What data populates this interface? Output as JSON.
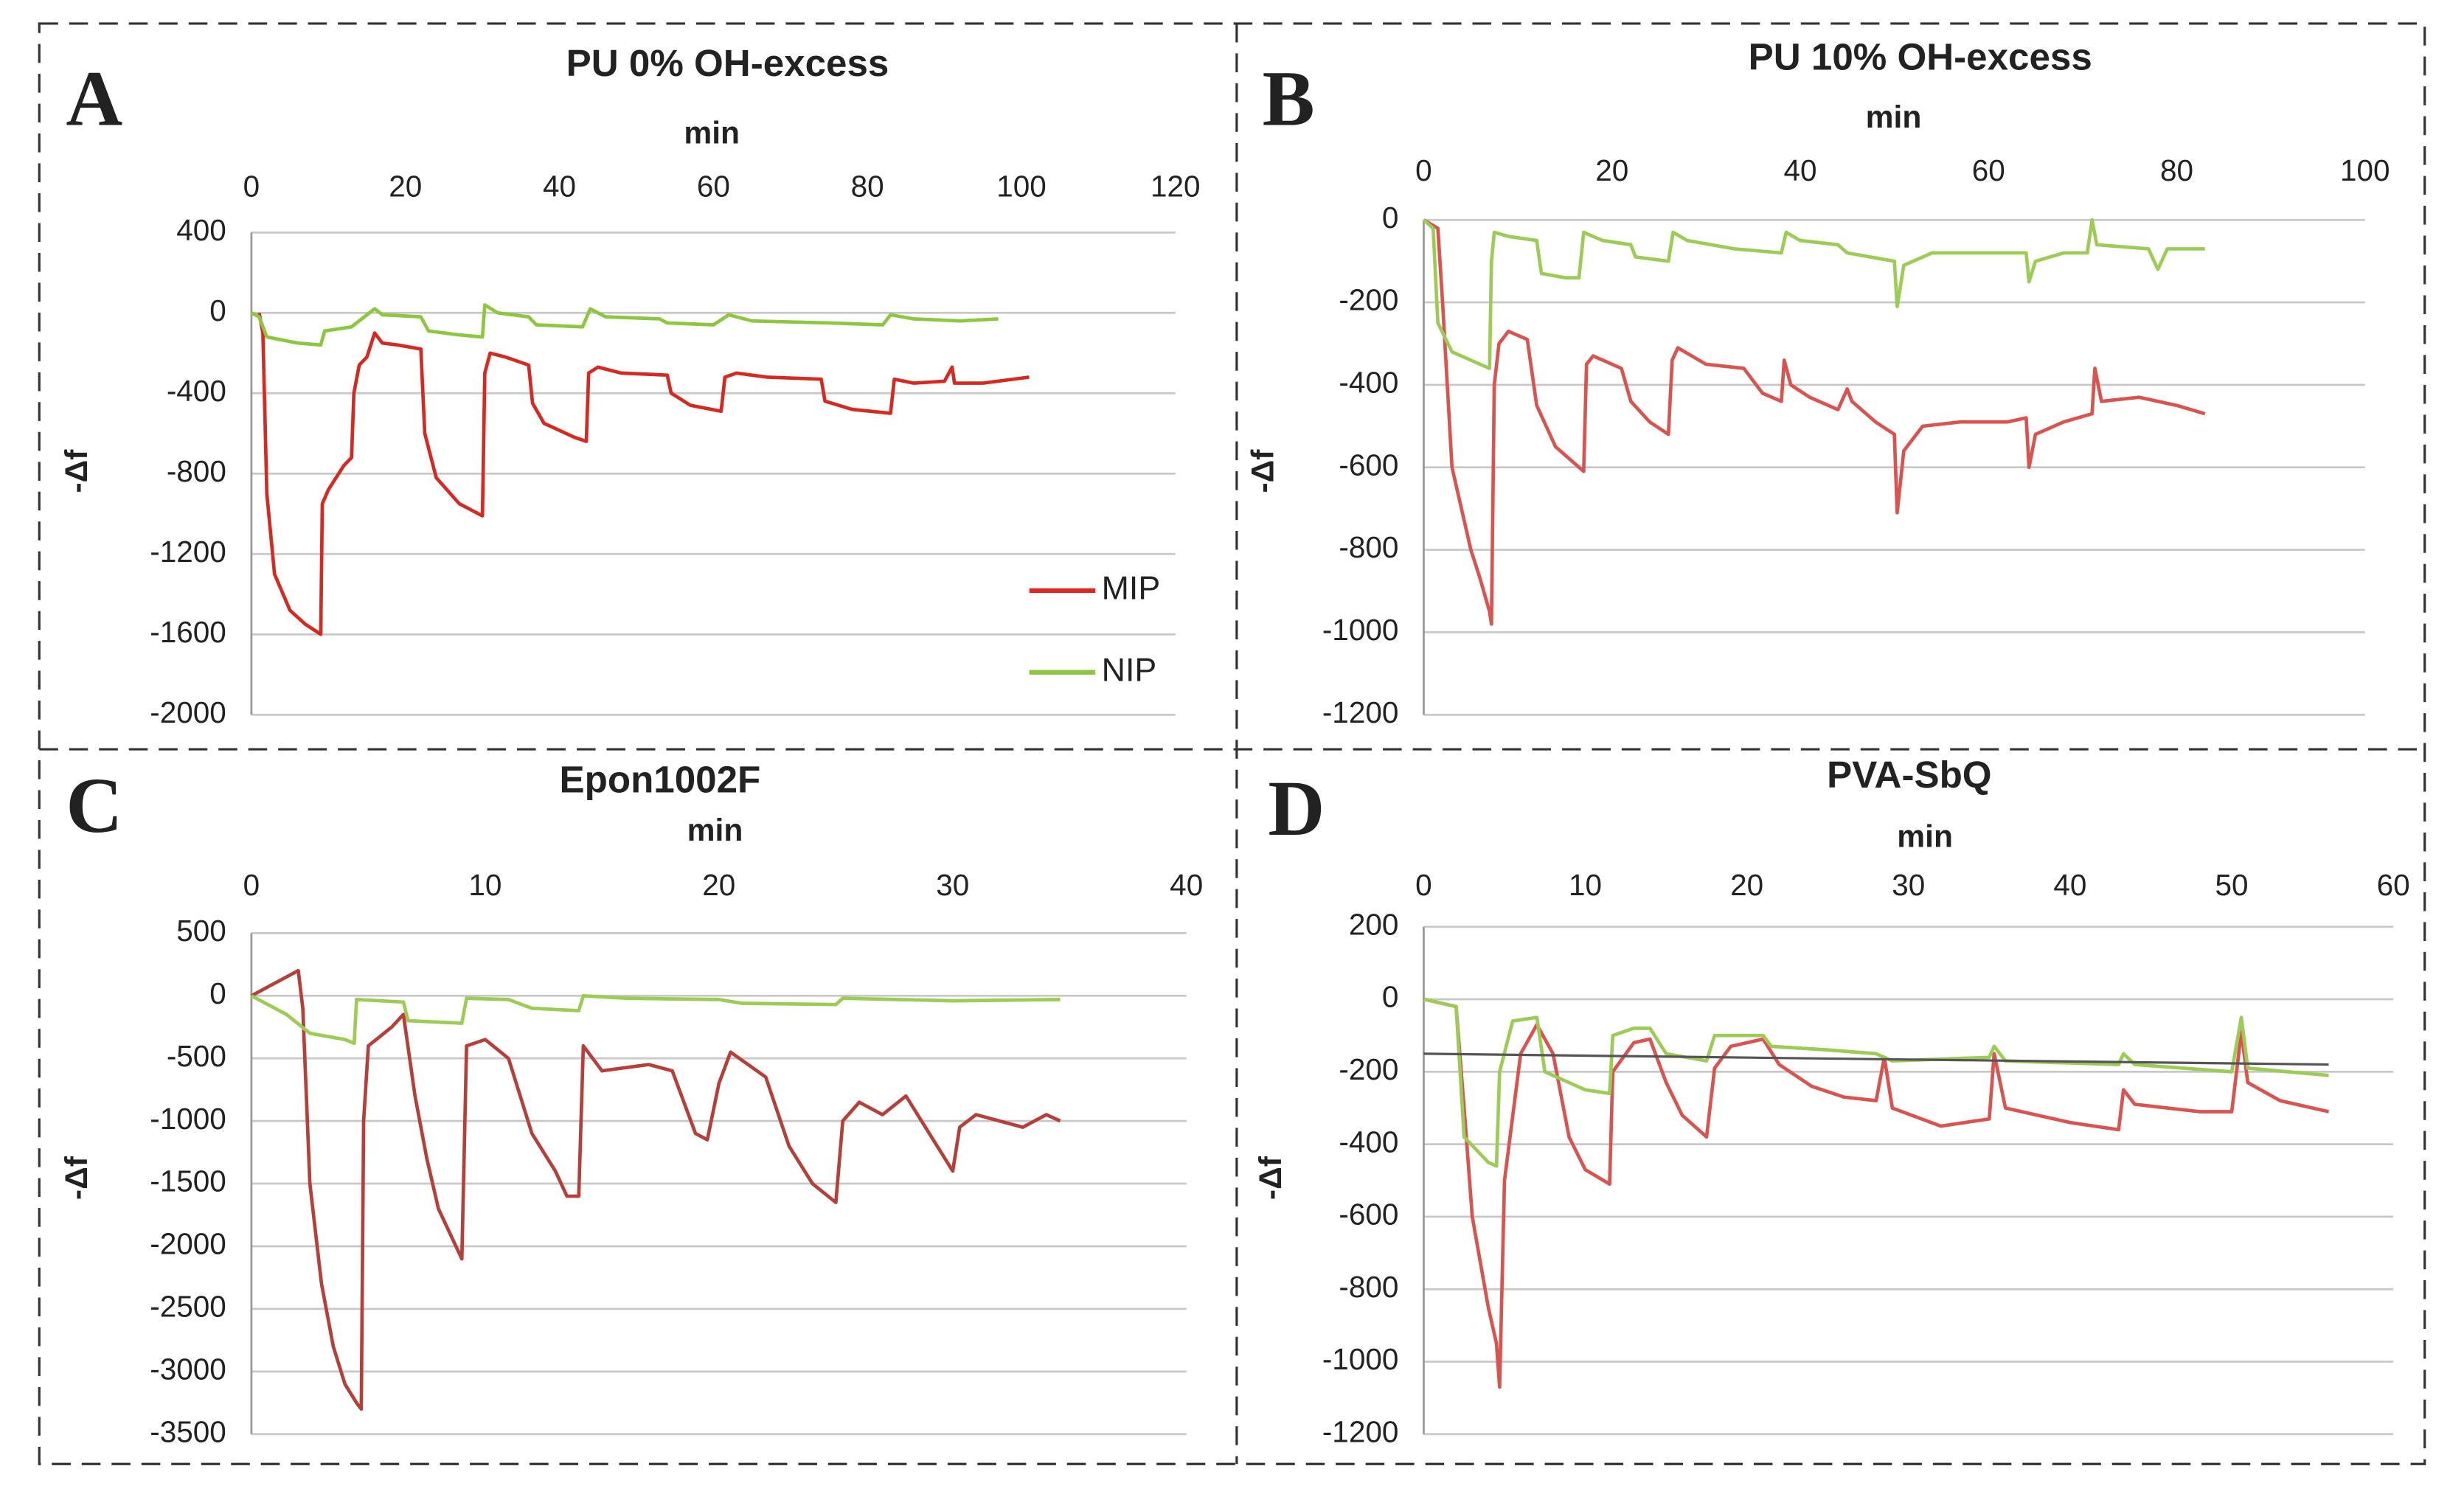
{
  "chart_data": [
    {
      "type": "line",
      "panel_label": "A",
      "title": "PU 0% OH-excess",
      "xlabel": "min",
      "ylabel": "-Δf",
      "xlim": [
        0,
        120
      ],
      "xticks": [
        0,
        20,
        40,
        60,
        80,
        100,
        120
      ],
      "ylim": [
        -2000,
        400
      ],
      "yticks": [
        400,
        0,
        -400,
        -800,
        -1200,
        -1600,
        -2000
      ],
      "grid": true,
      "legend": "right",
      "series": [
        {
          "name": "MIP",
          "color": "#d42a22",
          "x": [
            1,
            1.5,
            2,
            3,
            5,
            7,
            9,
            9.2,
            10,
            12,
            13,
            13.3,
            14,
            15,
            16,
            17,
            19,
            22,
            22.5,
            24,
            27,
            30,
            30.3,
            31,
            33,
            36,
            36.5,
            38,
            42,
            43.5,
            43.8,
            45,
            48,
            54,
            54.5,
            57,
            61,
            61.5,
            63,
            67,
            74,
            74.5,
            78,
            83,
            83.5,
            86,
            90,
            91,
            91.3,
            95,
            101
          ],
          "values": [
            0,
            -100,
            -900,
            -1300,
            -1480,
            -1550,
            -1600,
            -950,
            -880,
            -760,
            -720,
            -400,
            -260,
            -220,
            -100,
            -150,
            -160,
            -180,
            -600,
            -820,
            -950,
            -1010,
            -300,
            -200,
            -220,
            -260,
            -450,
            -550,
            -620,
            -640,
            -300,
            -270,
            -300,
            -310,
            -400,
            -460,
            -490,
            -320,
            -300,
            -320,
            -330,
            -440,
            -480,
            -500,
            -330,
            -350,
            -340,
            -270,
            -350,
            -350,
            -320
          ]
        },
        {
          "name": "NIP",
          "color": "#8dc63f",
          "x": [
            0,
            1,
            2,
            6,
            9,
            9.5,
            13,
            16,
            17,
            22,
            23,
            27,
            30,
            30.3,
            32,
            36,
            37,
            43,
            44,
            46,
            53,
            54,
            60,
            62,
            65,
            75,
            82,
            83,
            86,
            92,
            97
          ],
          "values": [
            0,
            -20,
            -120,
            -150,
            -160,
            -90,
            -70,
            20,
            -10,
            -20,
            -90,
            -110,
            -120,
            40,
            0,
            -20,
            -60,
            -70,
            20,
            -20,
            -30,
            -50,
            -60,
            -10,
            -40,
            -50,
            -60,
            -10,
            -30,
            -40,
            -30
          ]
        }
      ]
    },
    {
      "type": "line",
      "panel_label": "B",
      "title": "PU 10% OH-excess",
      "xlabel": "min",
      "ylabel": "-Δf",
      "xlim": [
        0,
        100
      ],
      "xticks": [
        0,
        20,
        40,
        60,
        80,
        100
      ],
      "ylim": [
        -1200,
        0
      ],
      "yticks": [
        0,
        -200,
        -400,
        -600,
        -800,
        -1000,
        -1200
      ],
      "grid": true,
      "series": [
        {
          "color": "#d9534f",
          "x": [
            0,
            1.5,
            2,
            3,
            5,
            6,
            7,
            7.2,
            7.5,
            8,
            9,
            11,
            12,
            14,
            17,
            17.3,
            18,
            21,
            22,
            24,
            26,
            26.4,
            27,
            30,
            34,
            36,
            38,
            38.3,
            39,
            41,
            44,
            45,
            45.5,
            48,
            50,
            50.3,
            51,
            53,
            57,
            62,
            64,
            64.3,
            65,
            68,
            71,
            71.3,
            72,
            76,
            80,
            83
          ],
          "values": [
            0,
            -20,
            -200,
            -600,
            -800,
            -870,
            -950,
            -980,
            -400,
            -300,
            -270,
            -290,
            -450,
            -550,
            -610,
            -350,
            -330,
            -360,
            -440,
            -490,
            -520,
            -340,
            -310,
            -350,
            -360,
            -420,
            -440,
            -340,
            -400,
            -430,
            -460,
            -410,
            -440,
            -490,
            -520,
            -710,
            -560,
            -500,
            -490,
            -490,
            -480,
            -600,
            -520,
            -490,
            -470,
            -360,
            -440,
            -430,
            -450,
            -470
          ]
        },
        {
          "color": "#9ccc55",
          "x": [
            0,
            1,
            1.5,
            3,
            6,
            7,
            7.2,
            7.5,
            9,
            12,
            12.5,
            15,
            16.5,
            17,
            19,
            22,
            22.5,
            26,
            26.5,
            28,
            33,
            38,
            38.5,
            40,
            44,
            45,
            50,
            50.3,
            51,
            54,
            60,
            64,
            64.3,
            65,
            68,
            70.5,
            71,
            71.5,
            77,
            78,
            79,
            83
          ],
          "values": [
            0,
            -20,
            -250,
            -320,
            -350,
            -360,
            -100,
            -30,
            -40,
            -50,
            -130,
            -140,
            -140,
            -30,
            -50,
            -60,
            -90,
            -100,
            -30,
            -50,
            -70,
            -80,
            -30,
            -50,
            -60,
            -80,
            -100,
            -210,
            -110,
            -80,
            -80,
            -80,
            -150,
            -100,
            -80,
            -80,
            0,
            -60,
            -70,
            -120,
            -70,
            -70
          ]
        }
      ]
    },
    {
      "type": "line",
      "panel_label": "C",
      "title": "Epon1002F",
      "xlabel": "min",
      "ylabel": "-Δf",
      "xlim": [
        0,
        40
      ],
      "xticks": [
        0,
        10,
        20,
        30,
        40
      ],
      "ylim": [
        -3500,
        500
      ],
      "yticks": [
        500,
        0,
        -500,
        -1000,
        -1500,
        -2000,
        -2500,
        -3000,
        -3500
      ],
      "grid": true,
      "series": [
        {
          "color": "#b5403a",
          "x": [
            0,
            1,
            2,
            2.2,
            2.5,
            3,
            3.5,
            4,
            4.5,
            4.7,
            4.8,
            5,
            6,
            6.5,
            7,
            7.5,
            8,
            9,
            9.2,
            10,
            11,
            12,
            13,
            13.5,
            14,
            14.2,
            15,
            17,
            18,
            19,
            19.5,
            20,
            20.5,
            22,
            23,
            24,
            25,
            25.3,
            26,
            27,
            28,
            29,
            30,
            30.3,
            31,
            33,
            34,
            34.6
          ],
          "values": [
            0,
            100,
            200,
            -100,
            -1500,
            -2300,
            -2800,
            -3100,
            -3250,
            -3300,
            -1000,
            -400,
            -250,
            -150,
            -800,
            -1300,
            -1700,
            -2100,
            -400,
            -350,
            -500,
            -1100,
            -1400,
            -1600,
            -1600,
            -400,
            -600,
            -550,
            -600,
            -1100,
            -1150,
            -700,
            -450,
            -650,
            -1200,
            -1500,
            -1650,
            -1000,
            -850,
            -950,
            -800,
            -1100,
            -1400,
            -1050,
            -950,
            -1050,
            -950,
            -1000
          ]
        },
        {
          "color": "#9ccc55",
          "x": [
            0,
            1.5,
            2.5,
            4,
            4.4,
            4.5,
            6.5,
            6.7,
            9,
            9.2,
            11,
            12,
            14,
            14.2,
            16,
            20,
            21,
            25,
            25.3,
            30,
            34.6
          ],
          "values": [
            0,
            -150,
            -300,
            -350,
            -380,
            -30,
            -50,
            -200,
            -220,
            -20,
            -30,
            -100,
            -120,
            0,
            -20,
            -30,
            -60,
            -70,
            -20,
            -40,
            -30
          ]
        }
      ]
    },
    {
      "type": "line",
      "panel_label": "D",
      "title": "PVA-SbQ",
      "xlabel": "min",
      "ylabel": "-Δf",
      "xlim": [
        0,
        60
      ],
      "xticks": [
        0,
        10,
        20,
        30,
        40,
        50,
        60
      ],
      "ylim": [
        -1200,
        200
      ],
      "yticks": [
        200,
        0,
        -200,
        -400,
        -600,
        -800,
        -1000,
        -1200
      ],
      "grid": true,
      "series": [
        {
          "color": "#d9534f",
          "x": [
            0,
            2,
            2.5,
            3,
            4,
            4.5,
            4.7,
            5,
            6,
            7,
            8,
            9,
            10,
            11.5,
            11.7,
            13,
            14,
            15,
            16,
            17.5,
            18,
            19,
            21,
            22,
            24,
            26,
            28,
            28.5,
            29,
            32,
            35,
            35.3,
            36,
            40,
            43,
            43.3,
            44,
            48,
            50,
            50.6,
            51,
            53,
            56
          ],
          "values": [
            0,
            -20,
            -300,
            -600,
            -850,
            -950,
            -1070,
            -500,
            -150,
            -70,
            -150,
            -380,
            -470,
            -510,
            -200,
            -120,
            -110,
            -230,
            -320,
            -380,
            -190,
            -130,
            -110,
            -180,
            -240,
            -270,
            -280,
            -160,
            -300,
            -350,
            -330,
            -150,
            -300,
            -340,
            -360,
            -250,
            -290,
            -310,
            -310,
            -90,
            -230,
            -280,
            -310
          ]
        },
        {
          "color": "#9ccc55",
          "x": [
            0,
            2,
            2.5,
            4,
            4.5,
            4.7,
            5.5,
            7,
            7.5,
            10,
            11.5,
            11.7,
            13,
            14,
            15,
            17.5,
            18,
            21,
            21.5,
            25,
            28,
            29,
            35,
            35.3,
            36,
            43,
            43.3,
            44,
            50,
            50.6,
            51,
            56
          ],
          "values": [
            0,
            -20,
            -380,
            -450,
            -460,
            -200,
            -60,
            -50,
            -200,
            -250,
            -260,
            -100,
            -80,
            -80,
            -150,
            -170,
            -100,
            -100,
            -130,
            -140,
            -150,
            -170,
            -160,
            -130,
            -170,
            -180,
            -150,
            -180,
            -200,
            -50,
            -190,
            -210
          ]
        },
        {
          "color": "#555555",
          "x": [
            0,
            56
          ],
          "values": [
            -150,
            -180
          ]
        }
      ]
    }
  ]
}
